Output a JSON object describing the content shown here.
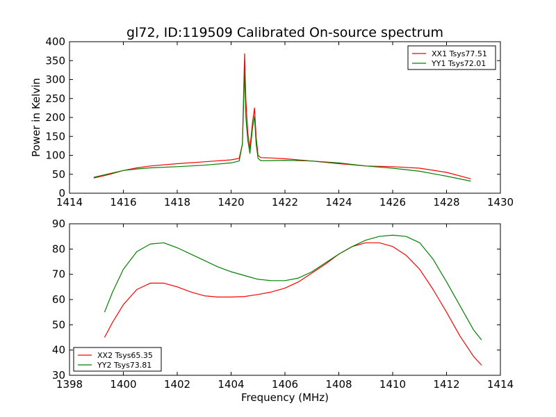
{
  "title": "gl72, ID:119509 Calibrated On-source spectrum",
  "colors": {
    "red": "#ff0000",
    "green": "#008000"
  },
  "chart_data": [
    {
      "type": "line",
      "ylabel": "Power in Kelvin",
      "xlabel": "",
      "xlim": [
        1414,
        1430
      ],
      "ylim": [
        0,
        400
      ],
      "xticks": [
        1414,
        1416,
        1418,
        1420,
        1422,
        1424,
        1426,
        1428,
        1430
      ],
      "yticks": [
        0,
        50,
        100,
        150,
        200,
        250,
        300,
        350,
        400
      ],
      "legend_position": "top-right",
      "series": [
        {
          "name": "XX1 Tsys77.51",
          "color": "#ff0000",
          "x": [
            1414.9,
            1415.5,
            1416.0,
            1416.5,
            1417.0,
            1418.0,
            1419.0,
            1420.0,
            1420.3,
            1420.42,
            1420.5,
            1420.55,
            1420.62,
            1420.7,
            1420.8,
            1420.87,
            1420.93,
            1421.0,
            1421.1,
            1421.5,
            1422.0,
            1423.0,
            1424.0,
            1425.0,
            1426.0,
            1427.0,
            1428.0,
            1428.9
          ],
          "y": [
            40,
            50,
            60,
            67,
            72,
            78,
            83,
            88,
            92,
            130,
            368,
            245,
            160,
            118,
            190,
            225,
            150,
            100,
            94,
            93,
            91,
            85,
            78,
            72,
            70,
            66,
            55,
            38
          ]
        },
        {
          "name": "YY1 Tsys72.01",
          "color": "#008000",
          "x": [
            1414.9,
            1415.5,
            1416.0,
            1416.5,
            1417.0,
            1418.0,
            1419.0,
            1420.0,
            1420.3,
            1420.42,
            1420.5,
            1420.55,
            1420.62,
            1420.7,
            1420.8,
            1420.87,
            1420.93,
            1421.0,
            1421.1,
            1421.5,
            1422.0,
            1423.0,
            1424.0,
            1425.0,
            1426.0,
            1427.0,
            1428.0,
            1428.9
          ],
          "y": [
            42,
            52,
            60,
            64,
            67,
            70,
            74,
            80,
            85,
            130,
            322,
            200,
            140,
            105,
            175,
            203,
            130,
            92,
            86,
            86,
            87,
            85,
            80,
            72,
            66,
            58,
            45,
            32
          ]
        }
      ]
    },
    {
      "type": "line",
      "ylabel": "",
      "xlabel": "Frequency (MHz)",
      "xlim": [
        1398,
        1414
      ],
      "ylim": [
        30,
        90
      ],
      "xticks": [
        1398,
        1400,
        1402,
        1404,
        1406,
        1408,
        1410,
        1412,
        1414
      ],
      "yticks": [
        30,
        40,
        50,
        60,
        70,
        80,
        90
      ],
      "legend_position": "bottom-left",
      "series": [
        {
          "name": "XX2 Tsys65.35",
          "color": "#ff0000",
          "x": [
            1399.3,
            1399.6,
            1400.0,
            1400.5,
            1401.0,
            1401.5,
            1402.0,
            1402.5,
            1403.0,
            1403.5,
            1404.0,
            1404.5,
            1405.0,
            1405.5,
            1406.0,
            1406.5,
            1407.0,
            1407.5,
            1408.0,
            1408.5,
            1409.0,
            1409.5,
            1410.0,
            1410.5,
            1411.0,
            1411.5,
            1412.0,
            1412.5,
            1413.0,
            1413.3
          ],
          "y": [
            45,
            51,
            58,
            64,
            66.5,
            66.5,
            65,
            63,
            61.5,
            61,
            61,
            61.2,
            62,
            63,
            64.5,
            67,
            70.5,
            74,
            78,
            81,
            82.5,
            82.5,
            81,
            77.5,
            72,
            64,
            55,
            45.5,
            37.5,
            34
          ]
        },
        {
          "name": "YY2 Tsys73.81",
          "color": "#008000",
          "x": [
            1399.3,
            1399.6,
            1400.0,
            1400.5,
            1401.0,
            1401.5,
            1402.0,
            1402.5,
            1403.0,
            1403.5,
            1404.0,
            1404.5,
            1405.0,
            1405.5,
            1406.0,
            1406.5,
            1407.0,
            1407.5,
            1408.0,
            1408.5,
            1409.0,
            1409.5,
            1410.0,
            1410.5,
            1411.0,
            1411.5,
            1412.0,
            1412.5,
            1413.0,
            1413.3
          ],
          "y": [
            55,
            63,
            72,
            79,
            82,
            82.5,
            80.5,
            78,
            75.5,
            73,
            71,
            69.5,
            68,
            67.5,
            67.5,
            68.5,
            71,
            74.5,
            78,
            81,
            83.5,
            85,
            85.5,
            85,
            82.5,
            76,
            67,
            57.5,
            48,
            44
          ]
        }
      ]
    }
  ]
}
